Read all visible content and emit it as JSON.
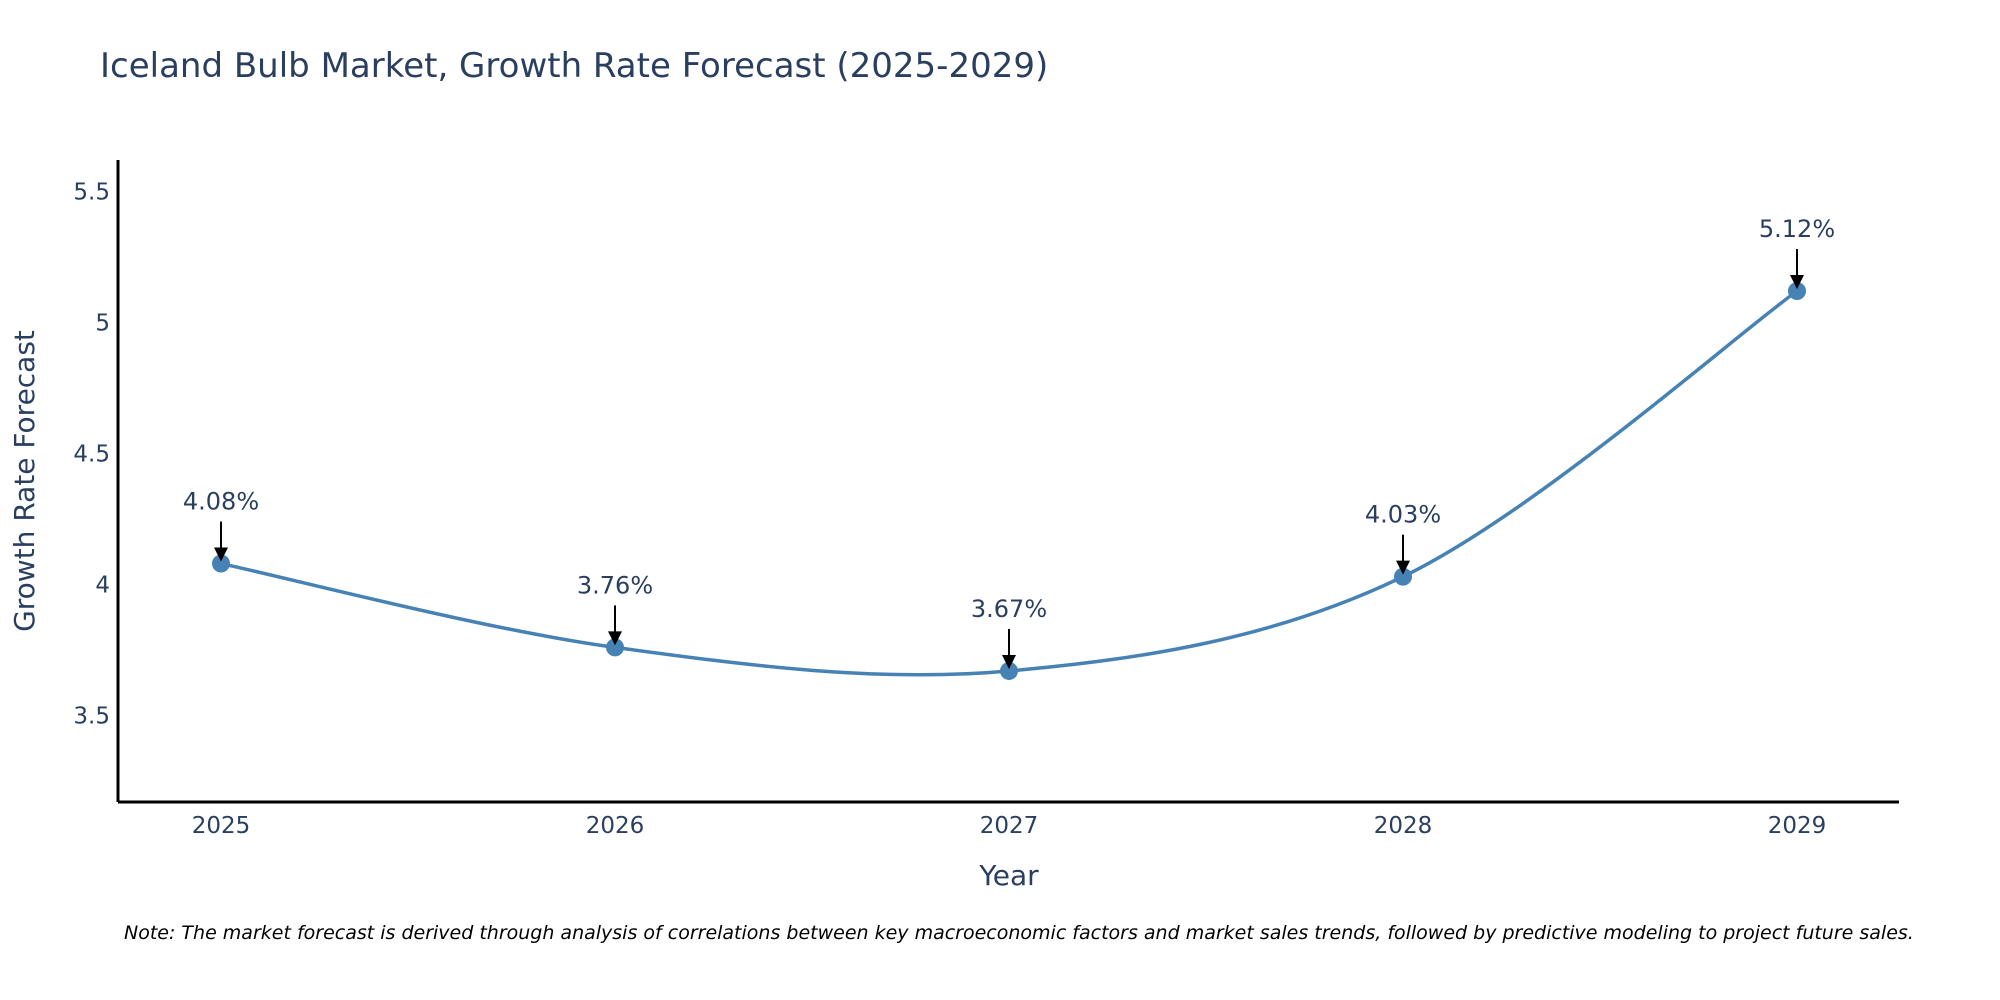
{
  "chart_data": {
    "type": "line",
    "title": "Iceland Bulb Market, Growth Rate Forecast (2025-2029)",
    "xlabel": "Year",
    "ylabel": "Growth Rate Forecast",
    "categories": [
      "2025",
      "2026",
      "2027",
      "2028",
      "2029"
    ],
    "series": [
      {
        "name": "Growth Rate Forecast",
        "values": [
          4.08,
          3.76,
          3.67,
          4.03,
          5.12
        ],
        "labels": [
          "4.08%",
          "3.76%",
          "3.67%",
          "4.03%",
          "5.12%"
        ],
        "color": "#4682b4"
      }
    ],
    "yticks": [
      3.5,
      4,
      4.5,
      5,
      5.5
    ],
    "ytick_labels": [
      "3.5",
      "4",
      "4.5",
      "5",
      "5.5"
    ],
    "ylim": [
      3.17,
      5.62
    ],
    "grid": false,
    "note": "Note: The market forecast is derived through analysis of correlations between key macroeconomic factors and market sales trends, followed by predictive modeling to project future sales."
  }
}
